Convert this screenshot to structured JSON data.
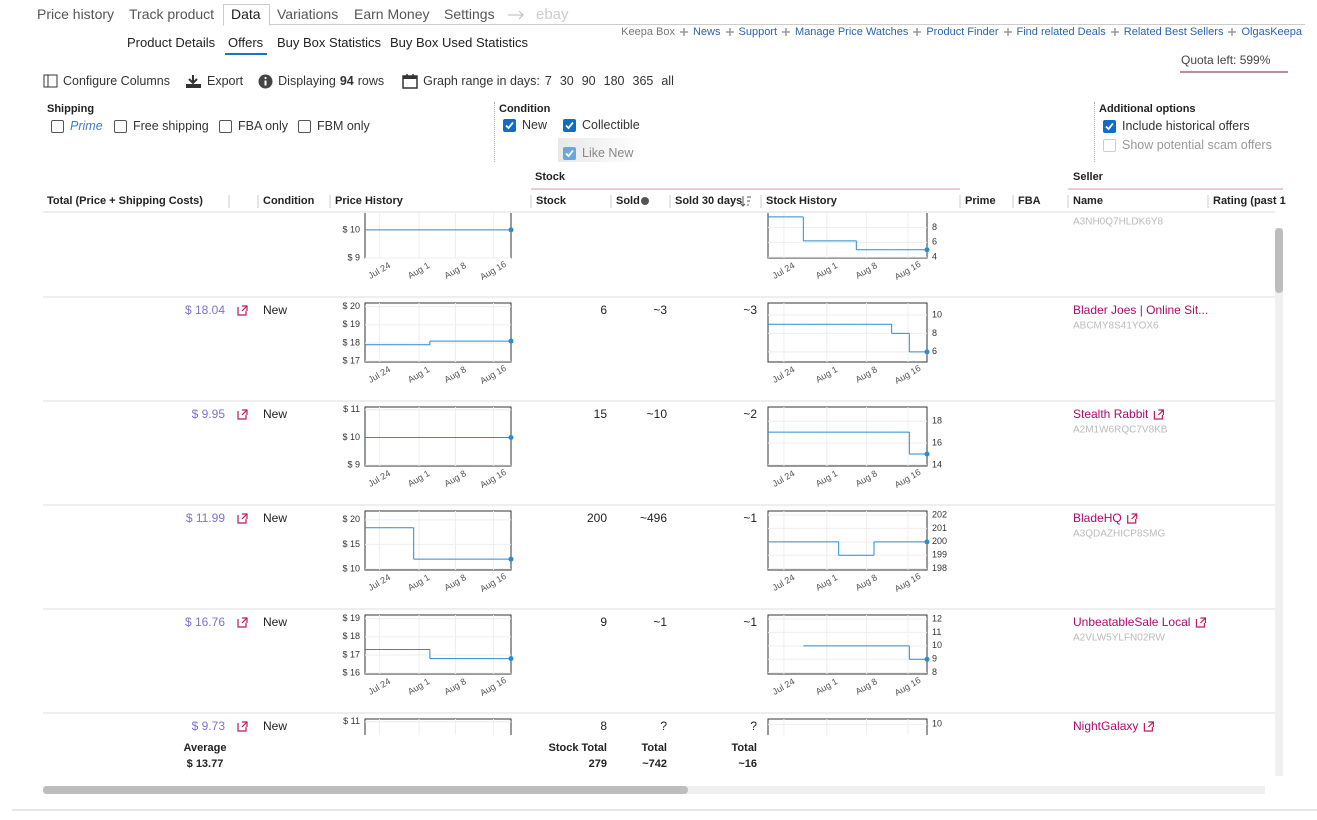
{
  "tabs": [
    "Price history",
    "Track product",
    "Data",
    "Variations",
    "Earn Money",
    "Settings",
    "ebay"
  ],
  "subtabs": [
    "Product Details",
    "Offers",
    "Buy Box Statistics",
    "Buy Box Used Statistics"
  ],
  "links": [
    "Keepa Box",
    "News",
    "Support",
    "Manage Price Watches",
    "Product Finder",
    "Find related Deals",
    "Related Best Sellers",
    "OlgasKeepa"
  ],
  "quota": "Quota left: 599%",
  "toolbar": {
    "configure": "Configure Columns",
    "export": "Export",
    "displaying_prefix": "Displaying",
    "displaying_count": "94",
    "displaying_suffix": "rows",
    "graph_range": "Graph range in days:",
    "ranges": [
      "7",
      "30",
      "90",
      "180",
      "365",
      "all"
    ]
  },
  "filters": {
    "shipping": {
      "title": "Shipping",
      "options": [
        {
          "label": "Prime",
          "checked": false
        },
        {
          "label": "Free shipping",
          "checked": false
        },
        {
          "label": "FBA only",
          "checked": false
        },
        {
          "label": "FBM only",
          "checked": false
        }
      ]
    },
    "condition": {
      "title": "Condition",
      "options": [
        {
          "label": "New",
          "checked": true
        },
        {
          "label": "Collectible",
          "checked": true
        },
        {
          "label": "Like New",
          "checked": true
        }
      ]
    },
    "additional": {
      "title": "Additional options",
      "options": [
        {
          "label": "Include historical offers",
          "checked": true
        },
        {
          "label": "Show potential scam offers",
          "checked": false
        }
      ]
    }
  },
  "table": {
    "group_headers": [
      "Stock",
      "Seller"
    ],
    "columns": [
      "Total (Price + Shipping Costs)",
      "Condition",
      "Price History",
      "Stock",
      "Sold",
      "Sold 30 days",
      "Stock History",
      "Prime",
      "FBA",
      "Name",
      "Rating (past 1"
    ],
    "date_ticks": [
      "Jul 24",
      "Aug 1",
      "Aug 8",
      "Aug 16"
    ],
    "rows": [
      {
        "seller_id": "A3NH0Q7HLDK6Y8",
        "price_chart": {
          "ylim": [
            9,
            11.1
          ],
          "yticks": [
            {
              "value": 10,
              "label": "$ 10"
            },
            {
              "value": 9,
              "label": "$ 9"
            }
          ],
          "values": [
            10,
            10,
            10,
            10,
            10,
            10,
            10,
            10,
            10
          ]
        },
        "stock_chart": {
          "ylim": [
            3.9,
            11.8
          ],
          "yticks": [
            8,
            6,
            4
          ],
          "values": [
            9.4,
            9.4,
            6.2,
            6.2,
            6.2,
            5,
            5,
            5,
            5
          ]
        }
      },
      {
        "total": "$ 18.04",
        "condition": "New",
        "stock": "6",
        "sold": "~3",
        "sold_30_days": "~3",
        "seller_name": "Blader Joes | Online Sit...",
        "seller_id": "ABCMY8S41YOX6",
        "price_chart": {
          "ylim": [
            16.95,
            20.2
          ],
          "yticks": [
            {
              "value": 20,
              "label": "$ 20"
            },
            {
              "value": 19,
              "label": "$ 19"
            },
            {
              "value": 18,
              "label": "$ 18"
            },
            {
              "value": 17,
              "label": "$ 17"
            }
          ],
          "values": [
            17.9,
            17.9,
            17.9,
            17.9,
            18.1,
            18.1,
            18.1,
            18.1,
            18.1
          ]
        },
        "stock_chart": {
          "ylim": [
            4.9,
            11.3
          ],
          "yticks": [
            10,
            8,
            6
          ],
          "values": [
            9,
            9,
            9,
            9,
            9,
            9,
            9,
            8,
            6
          ]
        }
      },
      {
        "total": "$ 9.95",
        "condition": "New",
        "stock": "15",
        "sold": "~10",
        "sold_30_days": "~2",
        "seller_name": "Stealth Rabbit",
        "seller_id": "A2M1W6RQC7V8KB",
        "price_chart": {
          "ylim": [
            8.97,
            11.1
          ],
          "yticks": [
            {
              "value": 11,
              "label": "$ 11"
            },
            {
              "value": 10,
              "label": "$ 10"
            },
            {
              "value": 9,
              "label": "$ 9"
            }
          ],
          "values": [
            10,
            10,
            10,
            10,
            10,
            10,
            10,
            10,
            10
          ]
        },
        "stock_chart": {
          "ylim": [
            13.9,
            19.3
          ],
          "yticks": [
            18,
            16,
            14
          ],
          "values": [
            17,
            17,
            17,
            17,
            17,
            17,
            17,
            17,
            15
          ]
        }
      },
      {
        "total": "$ 11.99",
        "condition": "New",
        "stock": "200",
        "sold": "~496",
        "sold_30_days": "~1",
        "seller_name": "BladeHQ",
        "seller_id": "A3QDAZHICP8SMG",
        "price_chart": {
          "ylim": [
            9.8,
            21.8
          ],
          "yticks": [
            {
              "value": 20,
              "label": "$ 20"
            },
            {
              "value": 15,
              "label": "$ 15"
            },
            {
              "value": 10,
              "label": "$ 10"
            }
          ],
          "values": [
            18.4,
            18.4,
            18.4,
            12,
            12,
            12,
            12,
            12,
            12
          ]
        },
        "stock_chart": {
          "ylim": [
            197.9,
            202.3
          ],
          "yticks": [
            202,
            201,
            200,
            199,
            198
          ],
          "values": [
            200,
            200,
            200,
            200,
            199,
            199,
            200,
            200,
            200
          ]
        }
      },
      {
        "total": "$ 16.76",
        "condition": "New",
        "stock": "9",
        "sold": "~1",
        "sold_30_days": "~1",
        "seller_name": "UnbeatableSale Local",
        "seller_id": "A2VLW5YLFN02RW",
        "price_chart": {
          "ylim": [
            15.95,
            19.2
          ],
          "yticks": [
            {
              "value": 19,
              "label": "$ 19"
            },
            {
              "value": 18,
              "label": "$ 18"
            },
            {
              "value": 17,
              "label": "$ 17"
            },
            {
              "value": 16,
              "label": "$ 16"
            }
          ],
          "values": [
            17.3,
            17.3,
            17.3,
            17.3,
            16.8,
            16.8,
            16.8,
            16.8,
            16.8
          ]
        },
        "stock_chart": {
          "ylim": [
            7.9,
            12.3
          ],
          "yticks": [
            12,
            11,
            10,
            9,
            8
          ],
          "values": [
            null,
            null,
            10,
            10,
            10,
            10,
            10,
            10,
            9
          ]
        }
      },
      {
        "total": "$ 9.73",
        "condition": "New",
        "stock": "8",
        "sold": "?",
        "sold_30_days": "?",
        "seller_name": "NightGalaxy",
        "price_chart": {
          "ylim": [
            8.97,
            11.1
          ],
          "yticks": [
            {
              "value": 11,
              "label": "$ 11"
            }
          ]
        },
        "stock_chart": {
          "ylim": [
            6,
            10.4
          ],
          "yticks": [
            10
          ]
        }
      }
    ],
    "footer": {
      "average_label": "Average",
      "average_value": "$ 13.77",
      "stock_total_label": "Stock Total",
      "stock_total_value": "279",
      "sold_total_label": "Total",
      "sold_total_value": "~742",
      "sold30_total_label": "Total",
      "sold30_total_value": "~16"
    }
  }
}
